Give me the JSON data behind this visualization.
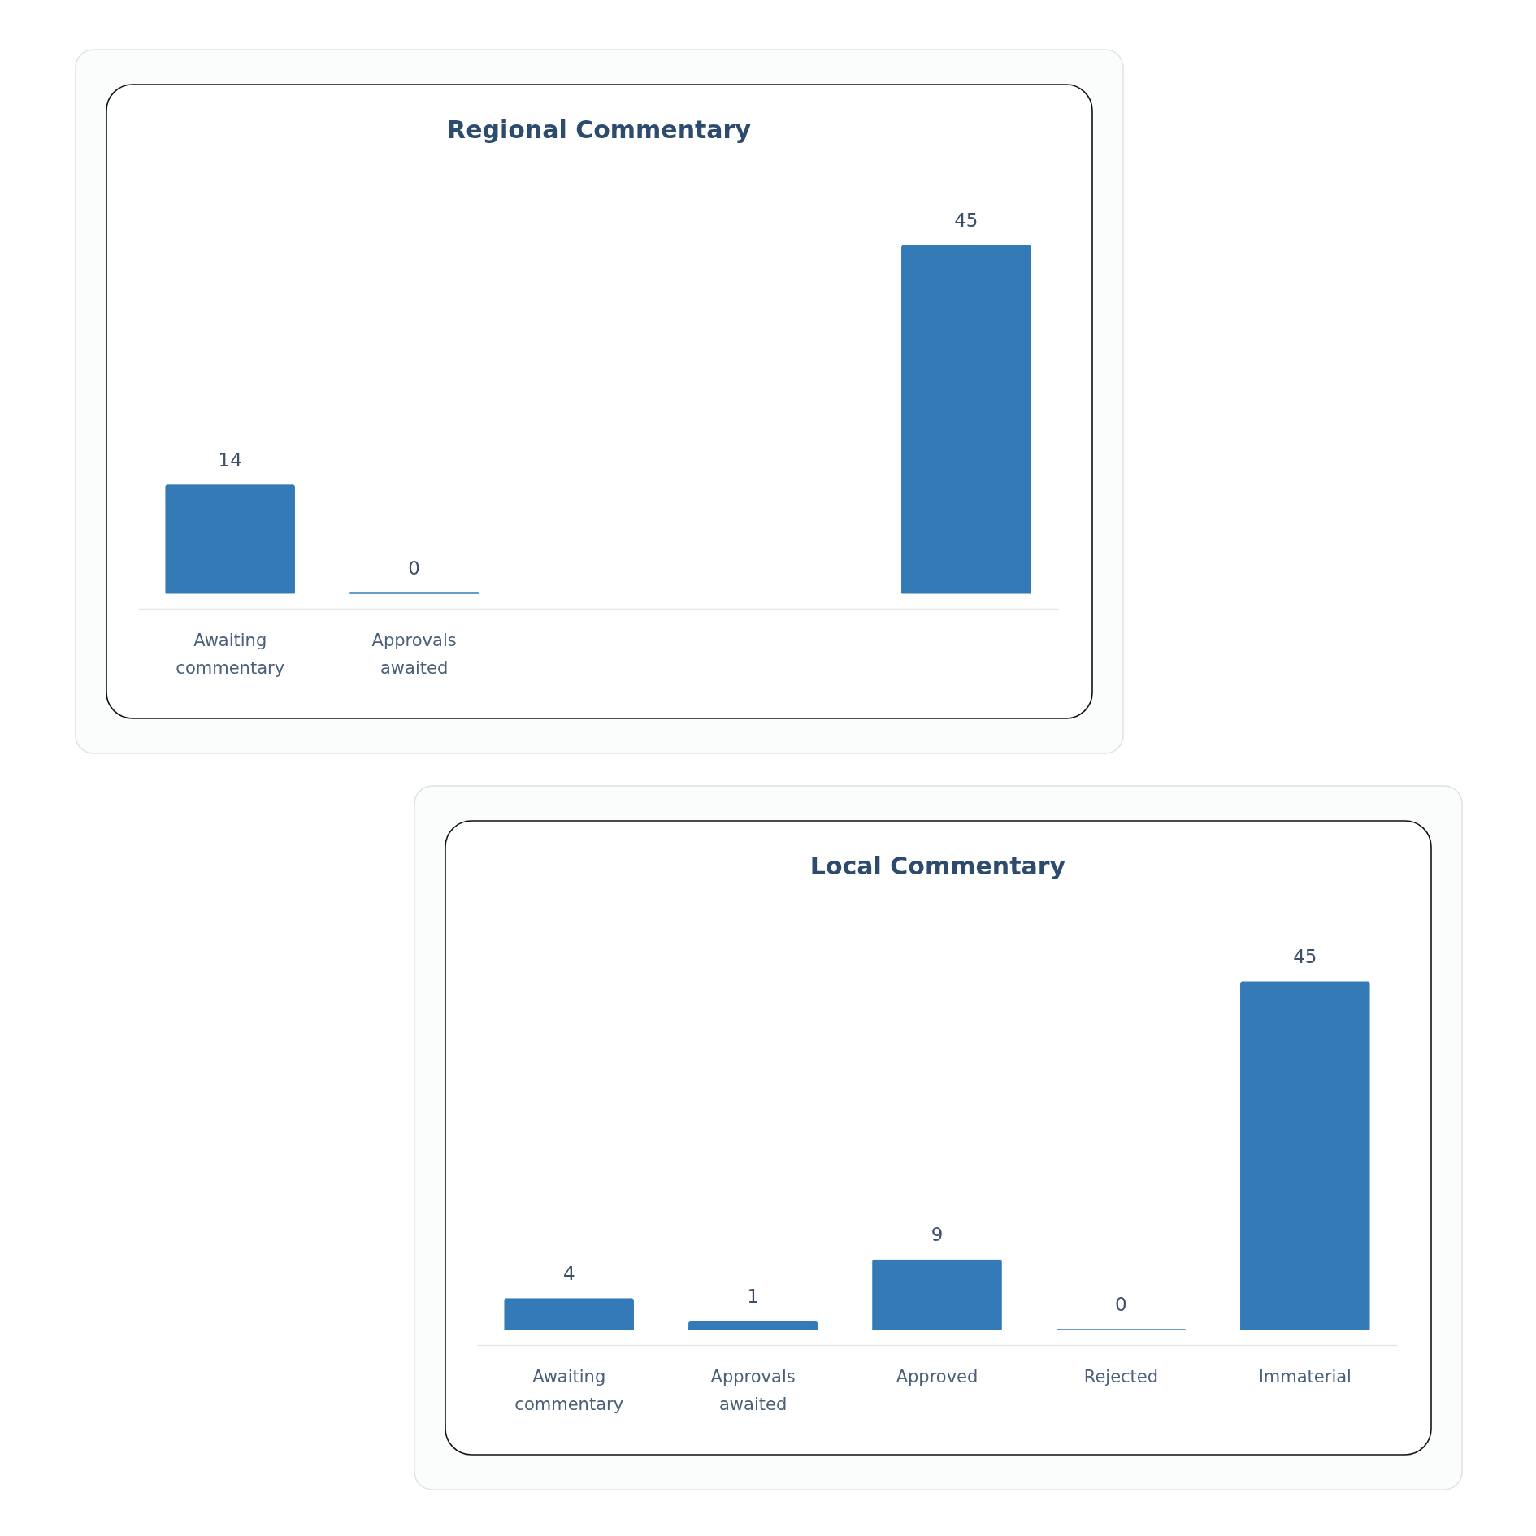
{
  "chart_data": [
    {
      "type": "bar",
      "title": "Regional Commentary",
      "categories": [
        "Awaiting commentary",
        "Approvals awaited",
        null,
        null,
        null
      ],
      "values": [
        14,
        0,
        null,
        null,
        45
      ],
      "color": "#337ab7",
      "data_labels": true
    },
    {
      "type": "bar",
      "title": "Local Commentary",
      "categories": [
        "Awaiting commentary",
        "Approvals awaited",
        "Approved",
        "Rejected",
        "Immaterial"
      ],
      "values": [
        4,
        1,
        9,
        0,
        45
      ],
      "color": "#337ab7",
      "data_labels": true
    }
  ]
}
